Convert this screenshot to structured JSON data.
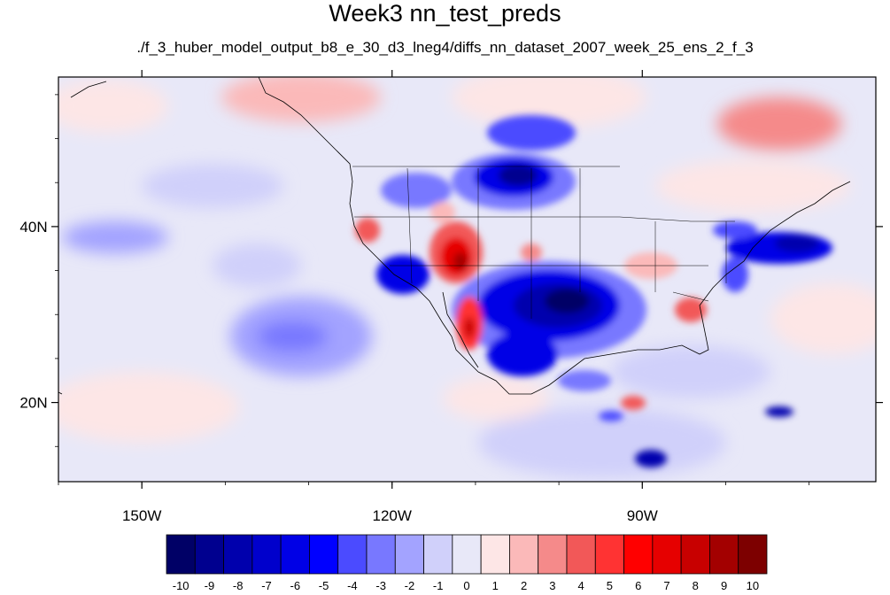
{
  "title": "Week3 nn_test_preds",
  "subtitle": "./f_3_huber_model_output_b8_e_30_d3_lneg4/diffs_nn_dataset_2007_week_25_ens_2_f_3",
  "map": {
    "lon_range": [
      -160,
      -62
    ],
    "lat_range": [
      11,
      57
    ],
    "lon_ticks": [
      {
        "value": -150,
        "label": "150W"
      },
      {
        "value": -120,
        "label": "120W"
      },
      {
        "value": -90,
        "label": "90W"
      }
    ],
    "lat_ticks": [
      {
        "value": 40,
        "label": "40N"
      },
      {
        "value": 20,
        "label": "20N"
      }
    ]
  },
  "colorbar": {
    "labels": [
      "-10",
      "-9",
      "-8",
      "-7",
      "-6",
      "-5",
      "-4",
      "-3",
      "-2",
      "-1",
      "0",
      "1",
      "2",
      "3",
      "4",
      "5",
      "6",
      "7",
      "8",
      "9",
      "10"
    ],
    "colors": [
      "#000066",
      "#00008f",
      "#0000ad",
      "#0000cc",
      "#0000e6",
      "#0000ff",
      "#4b4bff",
      "#7878ff",
      "#a3a3ff",
      "#d0d0fa",
      "#e8e8f8",
      "#fde6e6",
      "#fbb9b9",
      "#f58a8a",
      "#f25858",
      "#ff3333",
      "#ff0000",
      "#e60000",
      "#c80000",
      "#a30000",
      "#7d0000"
    ]
  }
}
